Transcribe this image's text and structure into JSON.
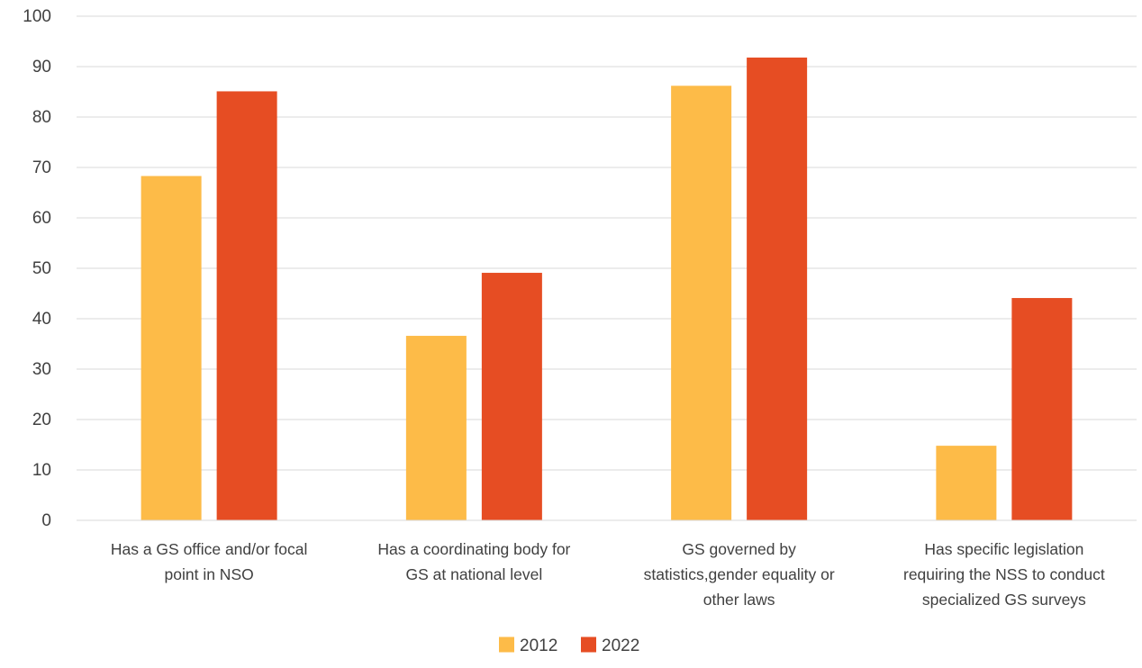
{
  "chart_data": {
    "type": "bar",
    "title": "",
    "xlabel": "",
    "ylabel": "",
    "ylim": [
      0,
      100
    ],
    "yticks": [
      "0",
      "10",
      "20",
      "30",
      "40",
      "50",
      "60",
      "70",
      "80",
      "90",
      "100"
    ],
    "grid": true,
    "legend": "bottom",
    "categories": [
      [
        "Has a GS office and/or focal",
        "point in NSO"
      ],
      [
        "Has a coordinating body for",
        "GS at national level"
      ],
      [
        "GS governed by",
        "statistics,gender equality or",
        "other laws"
      ],
      [
        "Has specific legislation",
        "requiring the NSS to conduct",
        "specialized GS surveys"
      ]
    ],
    "series": [
      {
        "name": "2012",
        "color": "#FDBB48",
        "values": [
          68.3,
          36.6,
          86.2,
          14.8
        ]
      },
      {
        "name": "2022",
        "color": "#E64D23",
        "values": [
          85.1,
          49.1,
          91.8,
          44.1
        ]
      }
    ]
  }
}
